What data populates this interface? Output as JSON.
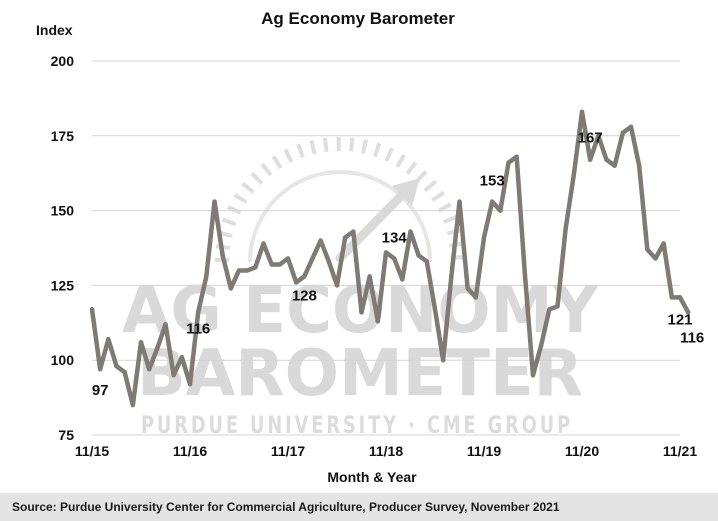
{
  "chart_data": {
    "type": "line",
    "title": "Ag Economy Barometer",
    "ylabel": "Index",
    "xlabel": "Month & Year",
    "ylim": [
      75,
      200
    ],
    "yticks": [
      75,
      100,
      125,
      150,
      175,
      200
    ],
    "xlim": [
      0,
      72
    ],
    "xticks": [
      {
        "label": "11/15",
        "pos": 0
      },
      {
        "label": "11/16",
        "pos": 12
      },
      {
        "label": "11/17",
        "pos": 24
      },
      {
        "label": "11/18",
        "pos": 36
      },
      {
        "label": "11/19",
        "pos": 48
      },
      {
        "label": "11/20",
        "pos": 60
      },
      {
        "label": "11/21",
        "pos": 72
      }
    ],
    "grid": "horizontal",
    "line_color": "#7f7a74",
    "series": [
      {
        "values": [
          117,
          97,
          107,
          98,
          96,
          85,
          106,
          97,
          104,
          112,
          95,
          101,
          92,
          116,
          128,
          153,
          135,
          124,
          130,
          130,
          131,
          139,
          132,
          132,
          134,
          126,
          128,
          134,
          140,
          133,
          125,
          141,
          143,
          116,
          128,
          113,
          136,
          134,
          127,
          143,
          135,
          133,
          117,
          100,
          128,
          153,
          124,
          121,
          141,
          153,
          150,
          166,
          168,
          129,
          95,
          105,
          117,
          118,
          144,
          162,
          183,
          167,
          175,
          167,
          165,
          176,
          178,
          165,
          137,
          134,
          139,
          121,
          121,
          116
        ]
      }
    ],
    "annotations": [
      {
        "text": "97",
        "index": 1,
        "value": 97
      },
      {
        "text": "116",
        "index": 13,
        "value": 116
      },
      {
        "text": "128",
        "index": 26,
        "value": 128
      },
      {
        "text": "134",
        "index": 37,
        "value": 134
      },
      {
        "text": "153",
        "index": 49,
        "value": 153
      },
      {
        "text": "167",
        "index": 61,
        "value": 167
      },
      {
        "text": "121",
        "index": 72,
        "value": 121
      },
      {
        "text": "116",
        "index": 73,
        "value": 116
      }
    ]
  },
  "watermark": {
    "line1": "AG ECONOMY",
    "line2": "BAROMETER",
    "line3": "PURDUE UNIVERSITY · CME GROUP"
  },
  "source": "Source: Purdue University Center for Commercial Agriculture, Producer Survey, November 2021"
}
